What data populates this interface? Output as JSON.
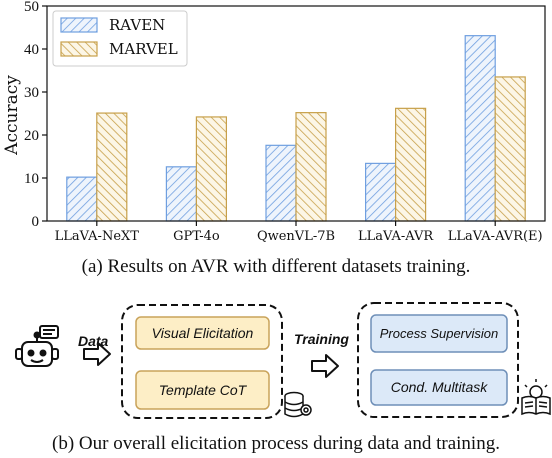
{
  "chart_data": {
    "type": "bar",
    "categories": [
      "LLaVA-NeXT",
      "GPT-4o",
      "QwenVL-7B",
      "LLaVA-AVR",
      "LLaVA-AVR(E)"
    ],
    "series": [
      {
        "name": "RAVEN",
        "values": [
          10.2,
          12.6,
          17.6,
          13.4,
          43.1
        ],
        "color": "#6f9fe0",
        "fill": "#e8f0fb",
        "hatch": "/"
      },
      {
        "name": "MARVEL",
        "values": [
          25.1,
          24.2,
          25.2,
          26.2,
          33.5
        ],
        "color": "#c7a04a",
        "fill": "#fbf4e0",
        "hatch": "\\"
      }
    ],
    "ylabel": "Accuracy",
    "xlabel": "",
    "ylim": [
      0,
      50
    ],
    "yticks": [
      0,
      10,
      20,
      30,
      40,
      50
    ],
    "legend_position": "top-left",
    "grid": false
  },
  "captions": {
    "a": "(a) Results on AVR with different datasets training.",
    "b": "(b) Our overall elicitation process during data and training."
  },
  "diagram": {
    "data_label": "Data",
    "training_label": "Training",
    "left_boxes": [
      "Visual Elicitation",
      "Template CoT"
    ],
    "right_boxes": [
      "Process Supervision",
      "Cond. Multitask"
    ],
    "colors": {
      "left_fill": "#fdeec6",
      "left_stroke": "#c9a35a",
      "right_fill": "#dce9f8",
      "right_stroke": "#6e8fb8"
    },
    "icons": [
      "robot-icon",
      "database-gear-icon",
      "book-lightbulb-icon",
      "arrow-right-icon"
    ]
  }
}
